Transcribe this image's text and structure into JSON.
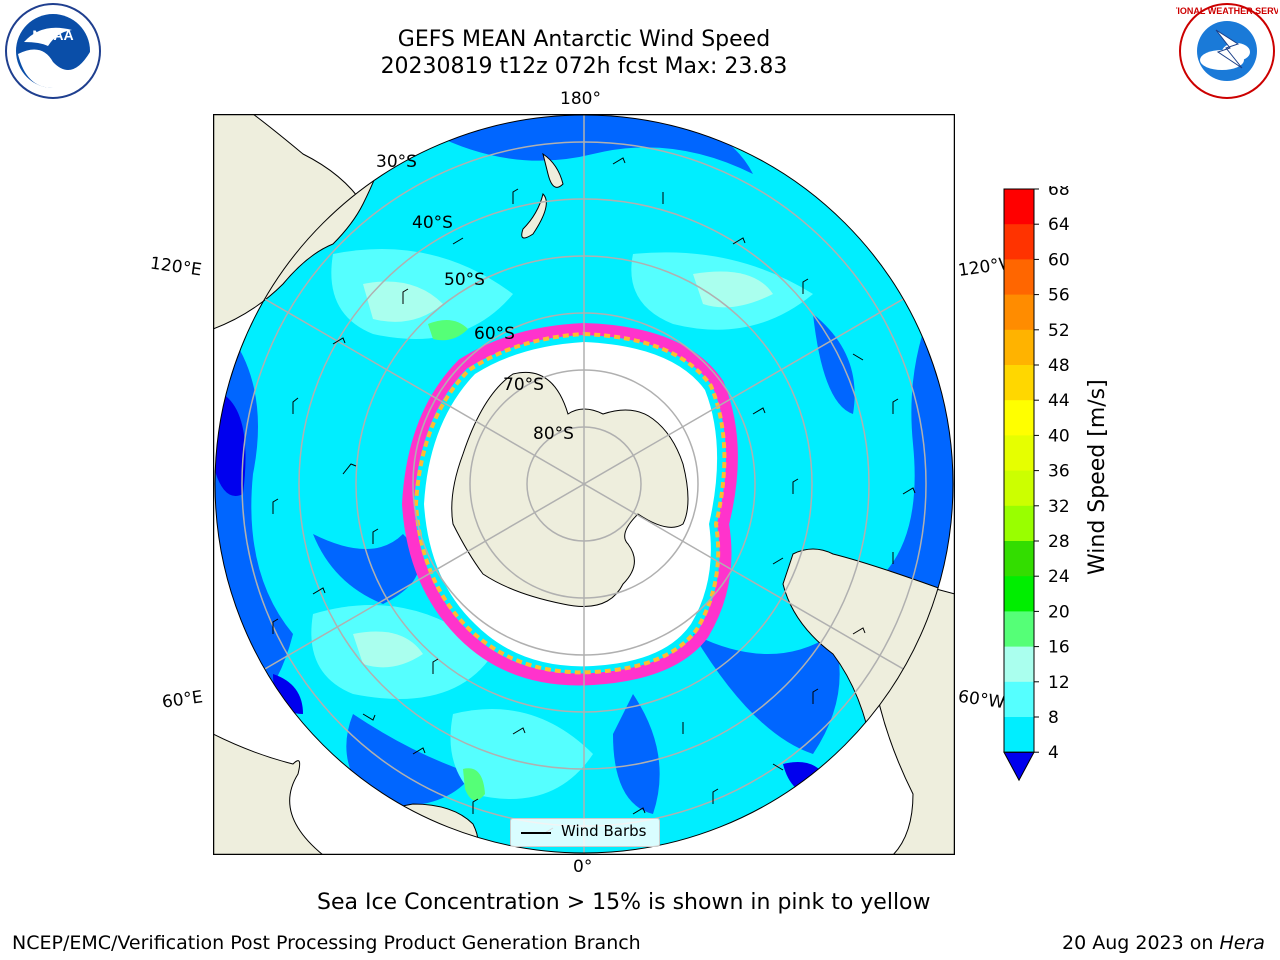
{
  "title": {
    "line1": "GEFS MEAN Antarctic Wind Speed",
    "line2": "20230819 t12z 072h fcst   Max: 23.83"
  },
  "longitude_labels": {
    "top": "180°",
    "bottom": "0°",
    "upper_left": "120°E",
    "upper_right": "120°W",
    "lower_left": "60°E",
    "lower_right": "60°W"
  },
  "latitude_labels": [
    "30°S",
    "40°S",
    "50°S",
    "60°S",
    "70°S",
    "80°S"
  ],
  "colorbar": {
    "label": "Wind Speed [m/s]",
    "ticks": [
      "68",
      "64",
      "60",
      "56",
      "52",
      "48",
      "44",
      "40",
      "36",
      "32",
      "28",
      "24",
      "20",
      "16",
      "12",
      "8",
      "4"
    ],
    "colors": [
      "#ff0000",
      "#ff3300",
      "#ff6600",
      "#ff8c00",
      "#ffb300",
      "#ffd700",
      "#ffff00",
      "#e6ff00",
      "#ccff00",
      "#99ff00",
      "#33dd00",
      "#00ee00",
      "#55ff77",
      "#aaffee",
      "#55ffff",
      "#00eeff",
      "#0066ff"
    ],
    "extend_color": "#0000ee"
  },
  "legend": {
    "label": "Wind Barbs"
  },
  "caption": "Sea Ice Concentration > 15% is shown in pink to yellow",
  "footer": {
    "left": "NCEP/EMC/Verification Post Processing Product Generation Branch",
    "right_prefix": "20 Aug 2023 on ",
    "right_machine": "Hera"
  },
  "logos": {
    "left": "NOAA",
    "right_text": "NATIONAL WEATHER SERVICE"
  },
  "colors": {
    "land": "#eeeedd",
    "ocean_light": "#00eeff",
    "ocean_mid": "#55ffff",
    "ocean_pale": "#aaffee",
    "ocean_dark": "#0066ff",
    "ocean_deep": "#0000ee",
    "sea_ice_pink": "#ff33cc",
    "sea_ice_yellow": "#ffbb33",
    "grid": "#b0b0b0"
  }
}
